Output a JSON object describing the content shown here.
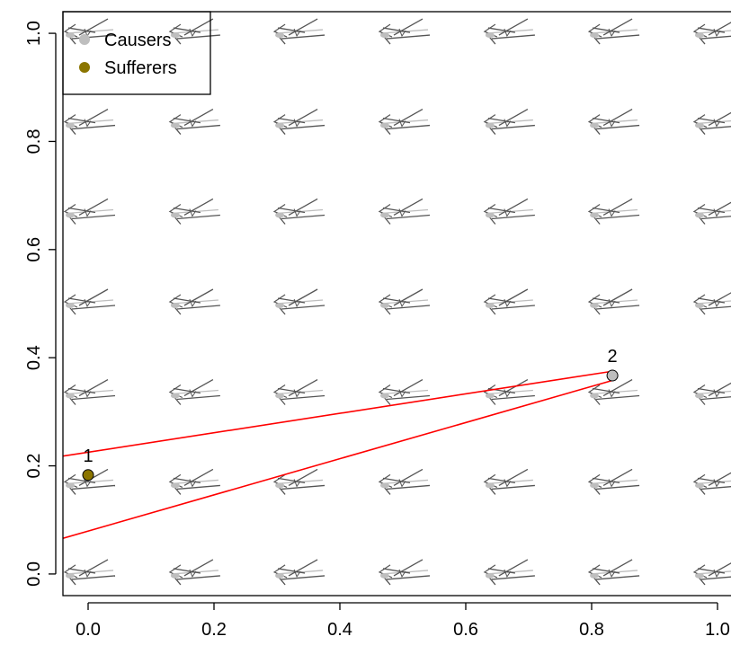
{
  "chart_data": {
    "type": "scatter",
    "title": "",
    "xlabel": "",
    "ylabel": "",
    "xlim": [
      -0.04,
      1.02
    ],
    "ylim": [
      -0.04,
      1.04
    ],
    "x_ticks": [
      0.0,
      0.2,
      0.4,
      0.6,
      0.8,
      1.0
    ],
    "x_tick_labels": [
      "0.0",
      "0.2",
      "0.4",
      "0.6",
      "0.8",
      "1.0"
    ],
    "y_ticks": [
      0.0,
      0.2,
      0.4,
      0.6,
      0.8,
      1.0
    ],
    "y_tick_labels": [
      "0.0",
      "0.2",
      "0.4",
      "0.6",
      "0.8",
      "1.0"
    ],
    "grid": false,
    "legend": {
      "position": "top-left",
      "entries": [
        {
          "label": "Causers",
          "color": "#bebebe"
        },
        {
          "label": "Sufferers",
          "color": "#8b7500"
        }
      ]
    },
    "series": [
      {
        "name": "Causers",
        "color": "#bebebe",
        "points": [
          {
            "x": 0.833,
            "y": 0.367,
            "label": "2"
          }
        ]
      },
      {
        "name": "Sufferers",
        "color": "#8b7500",
        "points": [
          {
            "x": 0.0,
            "y": 0.183,
            "label": "1"
          }
        ]
      }
    ],
    "lines": [
      {
        "color": "#ff0000",
        "x": [
          -0.04,
          0.833
        ],
        "y": [
          0.218,
          0.375
        ]
      },
      {
        "color": "#ff0000",
        "x": [
          -0.04,
          0.833
        ],
        "y": [
          0.066,
          0.358
        ]
      }
    ],
    "background_glyphs": {
      "x": [
        0.0,
        0.167,
        0.333,
        0.5,
        0.667,
        0.833,
        1.0
      ],
      "y": [
        0.0,
        0.167,
        0.333,
        0.5,
        0.667,
        0.833,
        1.0
      ],
      "colors": [
        "#bebebe",
        "#555555"
      ]
    }
  }
}
